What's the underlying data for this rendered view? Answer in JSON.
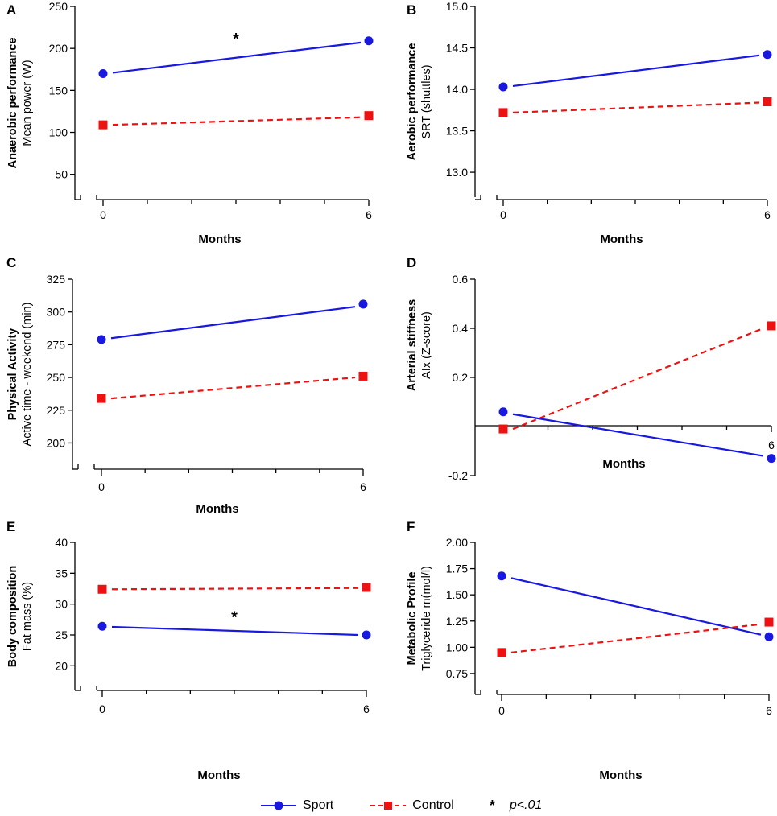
{
  "chart_data": [
    {
      "type": "line",
      "panel": "A",
      "ylabel_bold": "Anaerobic performance",
      "ylabel": "Mean power (W)",
      "xlabel": "Months",
      "ylim": [
        20,
        250
      ],
      "yticks": [
        50,
        100,
        150,
        200,
        250
      ],
      "ytick_labels": [
        "50",
        "100",
        "150",
        "200",
        "250"
      ],
      "x": [
        0,
        6
      ],
      "xtick_labels": [
        "0",
        "6"
      ],
      "series": [
        {
          "name": "Sport",
          "values": [
            170,
            209
          ],
          "fit": [
            171,
            207
          ]
        },
        {
          "name": "Control",
          "values": [
            109,
            120
          ],
          "fit": [
            109,
            118
          ]
        }
      ],
      "annotations": [
        {
          "text": "*",
          "x": 3,
          "y": 205
        }
      ]
    },
    {
      "type": "line",
      "panel": "B",
      "ylabel_bold": "Aerobic performance",
      "ylabel": "SRT (shuttles)",
      "xlabel": "Months",
      "ylim": [
        12.7,
        15.0
      ],
      "yticks": [
        13.0,
        13.5,
        14.0,
        14.5,
        15.0
      ],
      "ytick_labels": [
        "13.0",
        "13.5",
        "14.0",
        "14.5",
        "15.0"
      ],
      "x": [
        0,
        6
      ],
      "xtick_labels": [
        "0",
        "6"
      ],
      "series": [
        {
          "name": "Sport",
          "values": [
            14.03,
            14.42
          ],
          "fit": [
            14.04,
            14.41
          ]
        },
        {
          "name": "Control",
          "values": [
            13.72,
            13.85
          ],
          "fit": [
            13.72,
            13.84
          ]
        }
      ],
      "annotations": []
    },
    {
      "type": "line",
      "panel": "C",
      "ylabel_bold": "Physical Activity",
      "ylabel": "Active time - weekend (min)",
      "xlabel": "Months",
      "ylim": [
        180,
        325
      ],
      "yticks": [
        200,
        225,
        250,
        275,
        300,
        325
      ],
      "ytick_labels": [
        "200",
        "225",
        "250",
        "275",
        "300",
        "325"
      ],
      "x": [
        0,
        6
      ],
      "xtick_labels": [
        "0",
        "6"
      ],
      "series": [
        {
          "name": "Sport",
          "values": [
            279,
            306
          ],
          "fit": [
            280,
            304
          ]
        },
        {
          "name": "Control",
          "values": [
            234,
            251
          ],
          "fit": [
            234,
            250
          ]
        }
      ],
      "annotations": []
    },
    {
      "type": "line",
      "panel": "D",
      "ylabel_bold": "Arterial stiffness",
      "ylabel": "AIx (Z-score)",
      "xlabel": "Months",
      "ylim": [
        -0.2,
        0.6
      ],
      "yticks": [
        -0.2,
        0.2,
        0.4,
        0.6
      ],
      "ytick_labels": [
        "-0.2",
        "0.2",
        "0.4",
        "0.6"
      ],
      "x": [
        0,
        6
      ],
      "xtick_labels": [
        "6"
      ],
      "series": [
        {
          "name": "Sport",
          "values": [
            0.06,
            -0.13
          ],
          "fit": [
            0.05,
            -0.12
          ]
        },
        {
          "name": "Control",
          "values": [
            -0.01,
            0.41
          ],
          "fit": [
            -0.01,
            0.4
          ]
        }
      ],
      "annotations": []
    },
    {
      "type": "line",
      "panel": "E",
      "ylabel_bold": "Body composition",
      "ylabel": "Fat mass (%)",
      "xlabel": "Months",
      "ylim": [
        16,
        40
      ],
      "yticks": [
        20,
        25,
        30,
        35,
        40
      ],
      "ytick_labels": [
        "20",
        "25",
        "30",
        "35",
        "40"
      ],
      "x": [
        0,
        6
      ],
      "xtick_labels": [
        "0",
        "6"
      ],
      "series": [
        {
          "name": "Sport",
          "values": [
            26.4,
            25.0
          ],
          "fit": [
            26.3,
            25.0
          ]
        },
        {
          "name": "Control",
          "values": [
            32.4,
            32.7
          ],
          "fit": [
            32.4,
            32.6
          ]
        }
      ],
      "annotations": [
        {
          "text": "*",
          "x": 3,
          "y": 27.0
        }
      ]
    },
    {
      "type": "line",
      "panel": "F",
      "ylabel_bold": "Metabolic Profile",
      "ylabel": "Triglyceride m(mol/l)",
      "xlabel": "Months",
      "ylim": [
        0.55,
        2.0
      ],
      "yticks": [
        0.75,
        1.0,
        1.25,
        1.5,
        1.75,
        2.0
      ],
      "ytick_labels": [
        "0.75",
        "1.00",
        "1.25",
        "1.50",
        "1.75",
        "2.00"
      ],
      "x": [
        0,
        6
      ],
      "xtick_labels": [
        "0",
        "6"
      ],
      "series": [
        {
          "name": "Sport",
          "values": [
            1.68,
            1.1
          ],
          "fit": [
            1.66,
            1.12
          ]
        },
        {
          "name": "Control",
          "values": [
            0.95,
            1.24
          ],
          "fit": [
            0.95,
            1.22
          ]
        }
      ],
      "annotations": []
    }
  ],
  "legend": {
    "sport_label": "Sport",
    "control_label": "Control",
    "star_label": "*",
    "pvalue_label": "p<.01"
  },
  "colors": {
    "sport": "#1818e0",
    "control": "#ee1111"
  }
}
